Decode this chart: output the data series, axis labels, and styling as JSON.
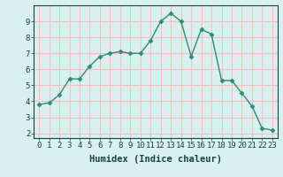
{
  "x": [
    0,
    1,
    2,
    3,
    4,
    5,
    6,
    7,
    8,
    9,
    10,
    11,
    12,
    13,
    14,
    15,
    16,
    17,
    18,
    19,
    20,
    21,
    22,
    23
  ],
  "y": [
    3.8,
    3.9,
    4.4,
    5.4,
    5.4,
    6.2,
    6.8,
    7.0,
    7.1,
    7.0,
    7.0,
    7.8,
    9.0,
    9.5,
    9.0,
    6.8,
    8.5,
    8.2,
    5.3,
    5.3,
    4.5,
    3.7,
    2.3,
    2.2
  ],
  "line_color": "#2e8b74",
  "marker": "D",
  "marker_size": 2.5,
  "bg_color": "#d8f0f0",
  "grid_color": "#f5c0c0",
  "xlabel": "Humidex (Indice chaleur)",
  "xlim": [
    -0.5,
    23.5
  ],
  "ylim": [
    1.7,
    10.0
  ],
  "yticks": [
    2,
    3,
    4,
    5,
    6,
    7,
    8,
    9
  ],
  "xticks": [
    0,
    1,
    2,
    3,
    4,
    5,
    6,
    7,
    8,
    9,
    10,
    11,
    12,
    13,
    14,
    15,
    16,
    17,
    18,
    19,
    20,
    21,
    22,
    23
  ],
  "xtick_labels": [
    "0",
    "1",
    "2",
    "3",
    "4",
    "5",
    "6",
    "7",
    "8",
    "9",
    "10",
    "11",
    "12",
    "13",
    "14",
    "15",
    "16",
    "17",
    "18",
    "19",
    "20",
    "21",
    "22",
    "23"
  ],
  "font_color": "#1a4040",
  "label_fontsize": 7.5,
  "tick_fontsize": 6.5,
  "linewidth": 1.0
}
